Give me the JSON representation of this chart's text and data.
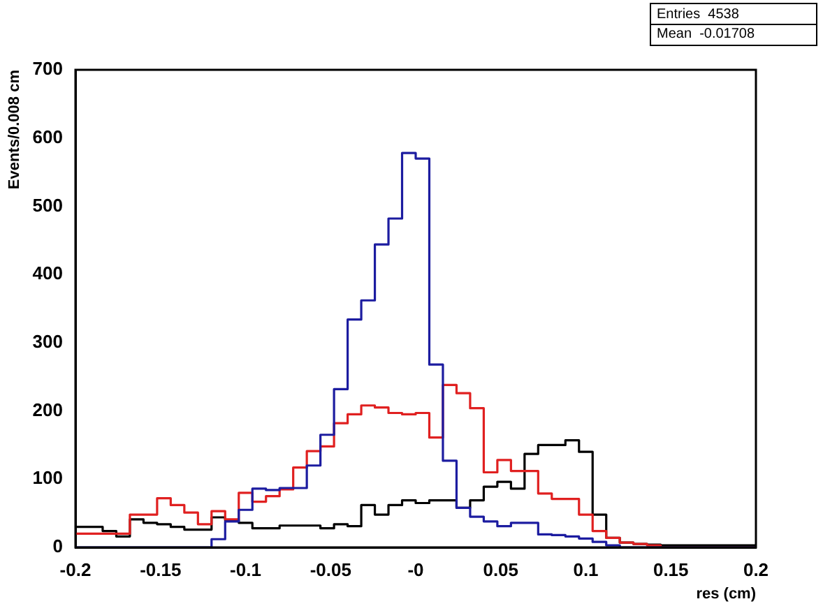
{
  "chart_data": {
    "type": "histogram",
    "xlabel": "res (cm)",
    "ylabel": "Events/0.008 cm",
    "annotations": [
      "Entries  4538",
      "Mean  -0.01708"
    ],
    "bins": [
      -0.2,
      -0.192,
      -0.184,
      -0.176,
      -0.168,
      -0.16,
      -0.152,
      -0.144,
      -0.136,
      -0.128,
      -0.12,
      -0.112,
      -0.104,
      -0.096,
      -0.088,
      -0.08,
      -0.072,
      -0.064,
      -0.056,
      -0.048,
      -0.04,
      -0.032,
      -0.024,
      -0.016,
      -0.008,
      0,
      0.008,
      0.016,
      0.024,
      0.032,
      0.04,
      0.048,
      0.056,
      0.064,
      0.072,
      0.08,
      0.088,
      0.096,
      0.104,
      0.112,
      0.12,
      0.128,
      0.136,
      0.144,
      0.152,
      0.16,
      0.168,
      0.176,
      0.184,
      0.192,
      0.2
    ],
    "series": [
      {
        "color": "#1c1ca0",
        "values": [
          0,
          0,
          0,
          0,
          0,
          0,
          0,
          0,
          0,
          0,
          12,
          38,
          55,
          86,
          84,
          87,
          87,
          120,
          165,
          232,
          334,
          362,
          444,
          482,
          578,
          570,
          268,
          127,
          58,
          45,
          38,
          31,
          36,
          36,
          19,
          18,
          16,
          13,
          8,
          3,
          0,
          0,
          0,
          0,
          0,
          0,
          0,
          0,
          0,
          0
        ]
      },
      {
        "color": "#e02020",
        "values": [
          20,
          20,
          20,
          20,
          48,
          48,
          72,
          62,
          51,
          34,
          53,
          41,
          80,
          67,
          75,
          85,
          117,
          141,
          148,
          182,
          195,
          208,
          205,
          197,
          195,
          197,
          161,
          238,
          226,
          204,
          110,
          128,
          112,
          112,
          79,
          71,
          71,
          48,
          24,
          14,
          7,
          5,
          3,
          0,
          0,
          0,
          0,
          0,
          0,
          0
        ]
      },
      {
        "color": "#000000",
        "values": [
          30,
          30,
          24,
          16,
          41,
          36,
          34,
          30,
          26,
          26,
          44,
          40,
          36,
          28,
          28,
          32,
          32,
          32,
          28,
          34,
          31,
          62,
          48,
          62,
          69,
          65,
          69,
          69,
          58,
          69,
          89,
          96,
          86,
          137,
          150,
          150,
          157,
          140,
          48,
          14,
          7,
          5,
          4,
          3,
          3,
          3,
          3,
          3,
          3,
          3
        ]
      }
    ],
    "xlim": [
      -0.2,
      0.2
    ],
    "xticks": [
      -0.2,
      -0.15,
      -0.1,
      -0.05,
      {
        "value": 0,
        "label": "-0"
      },
      0.05,
      0.1,
      0.15,
      0.2
    ],
    "ylim": [
      0,
      700
    ],
    "yticks": [
      0,
      100,
      200,
      300,
      400,
      500,
      600,
      700
    ]
  }
}
